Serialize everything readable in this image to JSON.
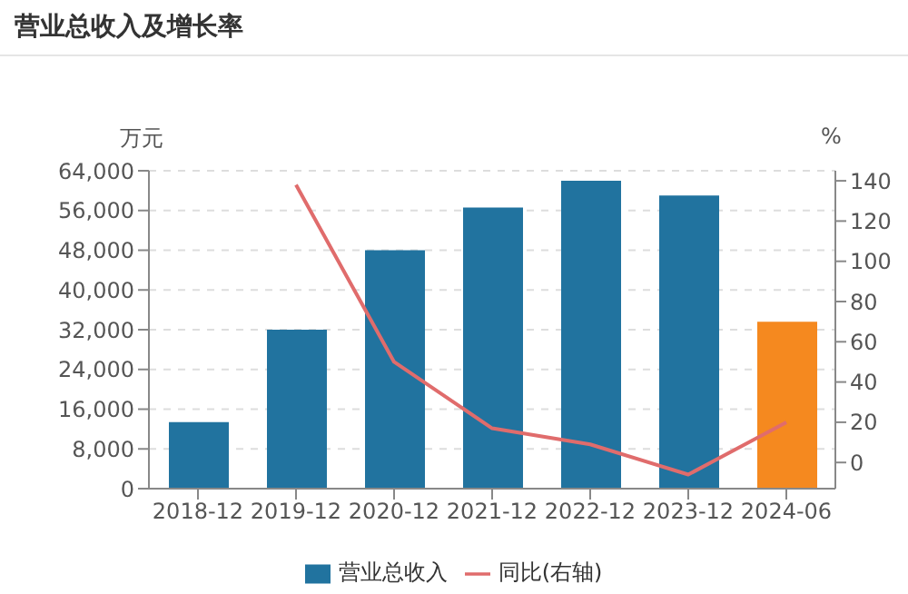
{
  "chart_data": {
    "type": "bar",
    "title": "营业总收入及增长率",
    "categories": [
      "2018-12",
      "2019-12",
      "2020-12",
      "2021-12",
      "2022-12",
      "2023-12",
      "2024-06"
    ],
    "series": [
      {
        "name": "营业总收入",
        "color": "#21739f",
        "colors": [
          "#21739f",
          "#21739f",
          "#21739f",
          "#21739f",
          "#21739f",
          "#21739f",
          "#f5891f"
        ],
        "values": [
          13400,
          32000,
          48000,
          56600,
          62000,
          59000,
          33600
        ]
      },
      {
        "name": "同比(右轴)",
        "type": "line",
        "axis": "y2",
        "color": "#e06c6c",
        "values": [
          null,
          138,
          50,
          17,
          9,
          -6,
          20
        ]
      }
    ],
    "ylabel": "万元",
    "y2label": "%",
    "ylim": [
      0,
      64000
    ],
    "yticks": [
      0,
      {
        "value": 8000,
        "label": "8,000"
      },
      {
        "value": 16000,
        "label": "16,000"
      },
      {
        "value": 24000,
        "label": "24,000"
      },
      {
        "value": 32000,
        "label": "32,000"
      },
      {
        "value": 40000,
        "label": "40,000"
      },
      {
        "value": 48000,
        "label": "48,000"
      },
      {
        "value": 56000,
        "label": "56,000"
      },
      {
        "value": 64000,
        "label": "64,000"
      }
    ],
    "y2lim": [
      -13,
      145
    ],
    "y2ticks": [
      0,
      20,
      40,
      60,
      80,
      100,
      120,
      140
    ],
    "grid": "y",
    "legend": "bottom",
    "marker": "none",
    "line_style": "solid"
  }
}
